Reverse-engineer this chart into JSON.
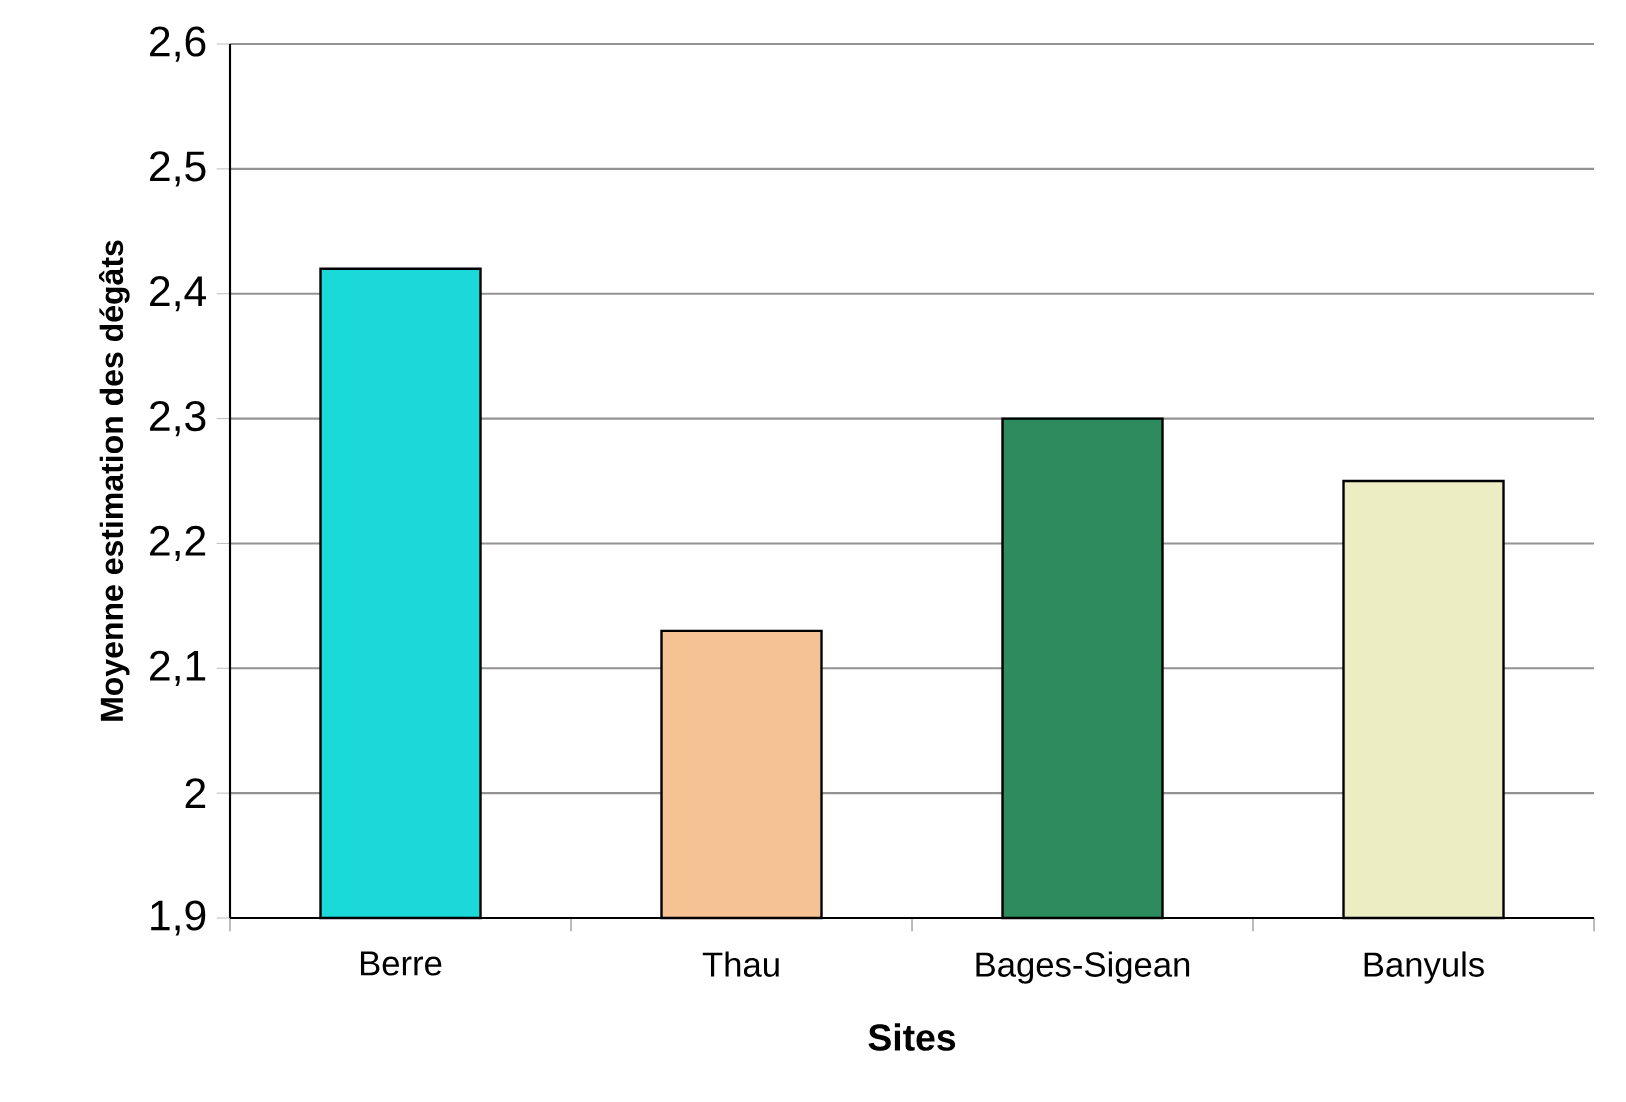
{
  "chart_data": {
    "type": "bar",
    "categories": [
      "Berre",
      "Thau",
      "Bages-Sigean",
      "Banyuls"
    ],
    "values": [
      2.42,
      2.13,
      2.3,
      2.25
    ],
    "colors": [
      "#1cd9d9",
      "#f5c393",
      "#2e8b5e",
      "#ededc4"
    ],
    "ylim": [
      1.9,
      2.6
    ],
    "yticks": [
      {
        "value": 1.9,
        "label": "1,9"
      },
      {
        "value": 2.0,
        "label": "2"
      },
      {
        "value": 2.1,
        "label": "2,1"
      },
      {
        "value": 2.2,
        "label": "2,2"
      },
      {
        "value": 2.3,
        "label": "2,3"
      },
      {
        "value": 2.4,
        "label": "2,4"
      },
      {
        "value": 2.5,
        "label": "2,5"
      },
      {
        "value": 2.6,
        "label": "2,6"
      }
    ],
    "xlabel": "Sites",
    "ylabel": "Moyenne estimation des dégâts",
    "grid": "y"
  }
}
